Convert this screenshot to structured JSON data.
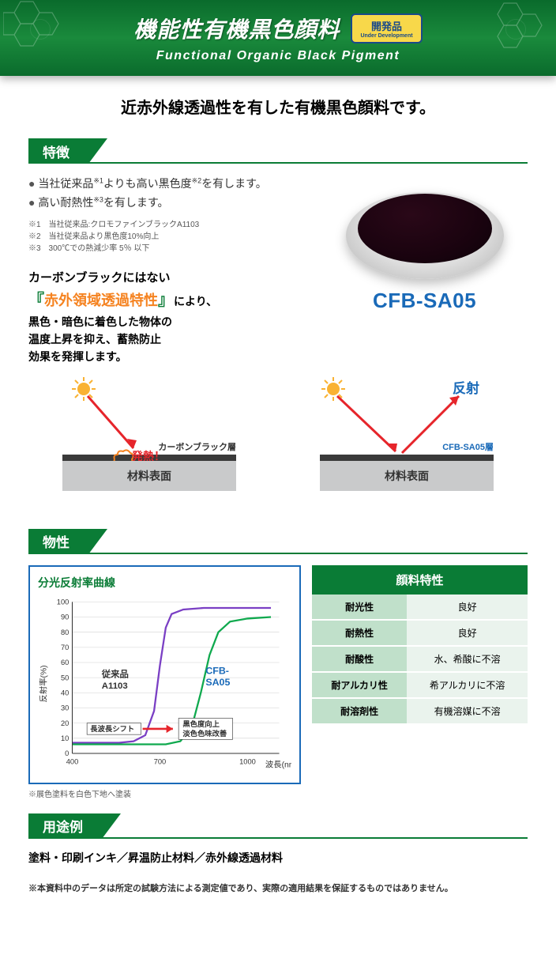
{
  "header": {
    "title_jp": "機能性有機黒色顔料",
    "title_en": "Functional Organic Black Pigment",
    "badge_jp": "開発品",
    "badge_en": "Under Development",
    "bg_gradient": [
      "#0a6b2c",
      "#1a8a3c"
    ]
  },
  "intro": "近赤外線透過性を有した有機黒色顔料です。",
  "sections": {
    "features": "特徴",
    "physical": "物性",
    "usage": "用途例"
  },
  "bullets": [
    "当社従来品※1よりも高い黒色度※2を有します。",
    "高い耐熱性※3を有します。"
  ],
  "notes": [
    "※1　当社従来品:クロモファインブラックA1103",
    "※2　当社従来品より黒色度10%向上",
    "※3　300℃での熱減少率 5％ 以下"
  ],
  "lead": {
    "pre": "カーボンブラックにはない",
    "highlight": "赤外領域透過特性",
    "post1": "により、",
    "post2": "黒色・暗色に着色した物体の",
    "post3": "温度上昇を抑え、蓄熱防止",
    "post4": "効果を発揮します。"
  },
  "product_name": "CFB-SA05",
  "diagram": {
    "carbon_label": "カーボンブラック層",
    "cfb_label": "CFB-SA05層",
    "heat": "発熱！",
    "reflect": "反射",
    "material": "材料表面",
    "sun_color": "#f9b233",
    "ray_color": "#e6252b",
    "layer_color": "#3a3a3a",
    "material_bg": "#c9cacb"
  },
  "chart": {
    "title": "分光反射率曲線",
    "ylabel": "反射率(%)",
    "xlabel": "波長(nm)",
    "ylim": [
      0,
      100
    ],
    "ytick_step": 10,
    "xticks": [
      400,
      700,
      1000
    ],
    "series": [
      {
        "name": "従来品 A1103",
        "color": "#7a3fc4",
        "points": [
          [
            400,
            7
          ],
          [
            500,
            7
          ],
          [
            560,
            7
          ],
          [
            610,
            8
          ],
          [
            650,
            12
          ],
          [
            680,
            28
          ],
          [
            700,
            58
          ],
          [
            720,
            83
          ],
          [
            740,
            92
          ],
          [
            780,
            95
          ],
          [
            850,
            96
          ],
          [
            1000,
            96
          ],
          [
            1080,
            96
          ]
        ]
      },
      {
        "name": "CFB-SA05",
        "color": "#0fa94e",
        "points": [
          [
            400,
            6
          ],
          [
            550,
            6
          ],
          [
            650,
            6
          ],
          [
            720,
            6
          ],
          [
            770,
            8
          ],
          [
            810,
            18
          ],
          [
            840,
            40
          ],
          [
            870,
            65
          ],
          [
            900,
            80
          ],
          [
            940,
            87
          ],
          [
            1000,
            89
          ],
          [
            1080,
            90
          ]
        ]
      }
    ],
    "legend_conv": "従来品",
    "legend_conv2": "A1103",
    "legend_new": "CFB-",
    "legend_new2": "SA05",
    "annotation1": "長波長シフト",
    "annotation2_a": "黒色度向上",
    "annotation2_b": "淡色色味改善",
    "note": "※展色塗料を白色下地へ塗装",
    "border_color": "#1a6ab8",
    "grid_color": "#d0d0d0",
    "title_color": "#0a7c36"
  },
  "props_table": {
    "header": "顔料特性",
    "rows": [
      [
        "耐光性",
        "良好"
      ],
      [
        "耐熱性",
        "良好"
      ],
      [
        "耐酸性",
        "水、希酸に不溶"
      ],
      [
        "耐アルカリ性",
        "希アルカリに不溶"
      ],
      [
        "耐溶剤性",
        "有機溶媒に不溶"
      ]
    ],
    "header_bg": "#0a7c36",
    "label_bg": "#c0e0ca",
    "value_bg": "#eaf3ed"
  },
  "usage_text": "塗料・印刷インキ／昇温防止材料／赤外線透過材料",
  "disclaimer": "※本資料中のデータは所定の試験方法による測定値であり、実際の適用結果を保証するものではありません。"
}
